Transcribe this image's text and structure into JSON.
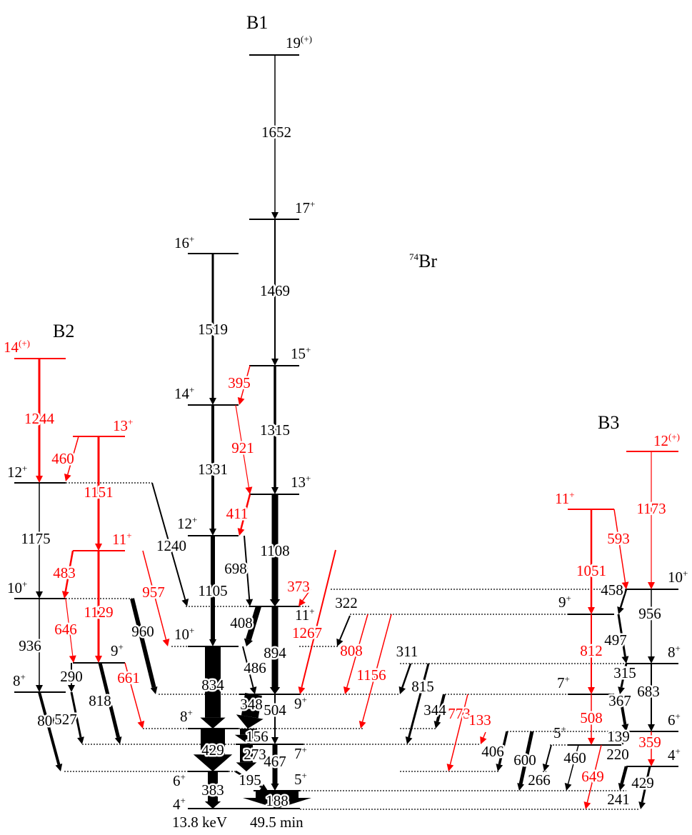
{
  "colors": {
    "black": "#000000",
    "red": "#ff0000"
  },
  "nucleus": {
    "mass": "74",
    "symbol": "Br"
  },
  "bands": [
    {
      "name": "B1"
    },
    {
      "name": "B2"
    },
    {
      "name": "B3"
    }
  ],
  "ground_state": {
    "energy": "13.8 keV",
    "half_life": "49.5 min"
  },
  "levels": [
    {
      "spin": "19",
      "parity": "(+)",
      "color": "black"
    },
    {
      "spin": "17",
      "parity": "+",
      "color": "black"
    },
    {
      "spin": "15",
      "parity": "+",
      "color": "black"
    },
    {
      "spin": "13",
      "parity": "+",
      "color": "black"
    },
    {
      "spin": "11",
      "parity": "+",
      "color": "black"
    },
    {
      "spin": "9",
      "parity": "+",
      "color": "black"
    },
    {
      "spin": "7",
      "parity": "+",
      "color": "black"
    },
    {
      "spin": "5",
      "parity": "+",
      "color": "black"
    },
    {
      "spin": "16",
      "parity": "+",
      "color": "black"
    },
    {
      "spin": "14",
      "parity": "+",
      "color": "black"
    },
    {
      "spin": "12",
      "parity": "+",
      "color": "black"
    },
    {
      "spin": "10",
      "parity": "+",
      "color": "black"
    },
    {
      "spin": "8",
      "parity": "+",
      "color": "black"
    },
    {
      "spin": "6",
      "parity": "+",
      "color": "black"
    },
    {
      "spin": "4",
      "parity": "+",
      "color": "black"
    },
    {
      "spin": "14",
      "parity": "(+)",
      "color": "red"
    },
    {
      "spin": "13",
      "parity": "+",
      "color": "red"
    },
    {
      "spin": "12",
      "parity": "+",
      "color": "black"
    },
    {
      "spin": "11",
      "parity": "+",
      "color": "red"
    },
    {
      "spin": "10",
      "parity": "+",
      "color": "black"
    },
    {
      "spin": "9",
      "parity": "+",
      "color": "black"
    },
    {
      "spin": "8",
      "parity": "+",
      "color": "black"
    },
    {
      "spin": "12",
      "parity": "(+)",
      "color": "red"
    },
    {
      "spin": "11",
      "parity": "+",
      "color": "red"
    },
    {
      "spin": "10",
      "parity": "+",
      "color": "black"
    },
    {
      "spin": "9",
      "parity": "+",
      "color": "black"
    },
    {
      "spin": "8",
      "parity": "+",
      "color": "black"
    },
    {
      "spin": "7",
      "parity": "+",
      "color": "black"
    },
    {
      "spin": "6",
      "parity": "+",
      "color": "black"
    },
    {
      "spin": "5",
      "parity": "+",
      "color": "black"
    },
    {
      "spin": "4",
      "parity": "+",
      "color": "black"
    }
  ],
  "transitions": [
    {
      "energy": "1652",
      "color": "black"
    },
    {
      "energy": "1469",
      "color": "black"
    },
    {
      "energy": "1315",
      "color": "black"
    },
    {
      "energy": "1108",
      "color": "black"
    },
    {
      "energy": "894",
      "color": "black"
    },
    {
      "energy": "504",
      "color": "black"
    },
    {
      "energy": "467",
      "color": "black"
    },
    {
      "energy": "188",
      "color": "black"
    },
    {
      "energy": "1519",
      "color": "black"
    },
    {
      "energy": "1331",
      "color": "black"
    },
    {
      "energy": "1105",
      "color": "black"
    },
    {
      "energy": "834",
      "color": "black"
    },
    {
      "energy": "429",
      "color": "black"
    },
    {
      "energy": "383",
      "color": "black"
    },
    {
      "energy": "698",
      "color": "black"
    },
    {
      "energy": "408",
      "color": "black"
    },
    {
      "energy": "486",
      "color": "black"
    },
    {
      "energy": "348",
      "color": "black"
    },
    {
      "energy": "156",
      "color": "black"
    },
    {
      "energy": "273",
      "color": "black"
    },
    {
      "energy": "195",
      "color": "black"
    },
    {
      "energy": "1240",
      "color": "black"
    },
    {
      "energy": "960",
      "color": "black"
    },
    {
      "energy": "818",
      "color": "black"
    },
    {
      "energy": "800",
      "color": "black"
    },
    {
      "energy": "527",
      "color": "black"
    },
    {
      "energy": "290",
      "color": "black"
    },
    {
      "energy": "936",
      "color": "black"
    },
    {
      "energy": "1175",
      "color": "black"
    },
    {
      "energy": "1244",
      "color": "red"
    },
    {
      "energy": "460",
      "color": "red"
    },
    {
      "energy": "1151",
      "color": "red"
    },
    {
      "energy": "1129",
      "color": "red"
    },
    {
      "energy": "483",
      "color": "red"
    },
    {
      "energy": "646",
      "color": "red"
    },
    {
      "energy": "957",
      "color": "red"
    },
    {
      "energy": "661",
      "color": "red"
    },
    {
      "energy": "395",
      "color": "red"
    },
    {
      "energy": "921",
      "color": "red"
    },
    {
      "energy": "411",
      "color": "red"
    },
    {
      "energy": "373",
      "color": "red"
    },
    {
      "energy": "1267",
      "color": "red"
    },
    {
      "energy": "808",
      "color": "red"
    },
    {
      "energy": "1156",
      "color": "red"
    },
    {
      "energy": "773",
      "color": "red"
    },
    {
      "energy": "133",
      "color": "red"
    },
    {
      "energy": "322",
      "color": "black"
    },
    {
      "energy": "311",
      "color": "black"
    },
    {
      "energy": "815",
      "color": "black"
    },
    {
      "energy": "344",
      "color": "black"
    },
    {
      "energy": "406",
      "color": "black"
    },
    {
      "energy": "600",
      "color": "black"
    },
    {
      "energy": "266",
      "color": "black"
    },
    {
      "energy": "460",
      "color": "black"
    },
    {
      "energy": "649",
      "color": "red"
    },
    {
      "energy": "1051",
      "color": "red"
    },
    {
      "energy": "812",
      "color": "red"
    },
    {
      "energy": "508",
      "color": "red"
    },
    {
      "energy": "593",
      "color": "red"
    },
    {
      "energy": "1173",
      "color": "red"
    },
    {
      "energy": "458",
      "color": "black"
    },
    {
      "energy": "956",
      "color": "black"
    },
    {
      "energy": "497",
      "color": "black"
    },
    {
      "energy": "683",
      "color": "black"
    },
    {
      "energy": "315",
      "color": "black"
    },
    {
      "energy": "367",
      "color": "black"
    },
    {
      "energy": "359",
      "color": "red"
    },
    {
      "energy": "139",
      "color": "black"
    },
    {
      "energy": "220",
      "color": "black"
    },
    {
      "energy": "429",
      "color": "black"
    },
    {
      "energy": "241",
      "color": "black"
    }
  ]
}
